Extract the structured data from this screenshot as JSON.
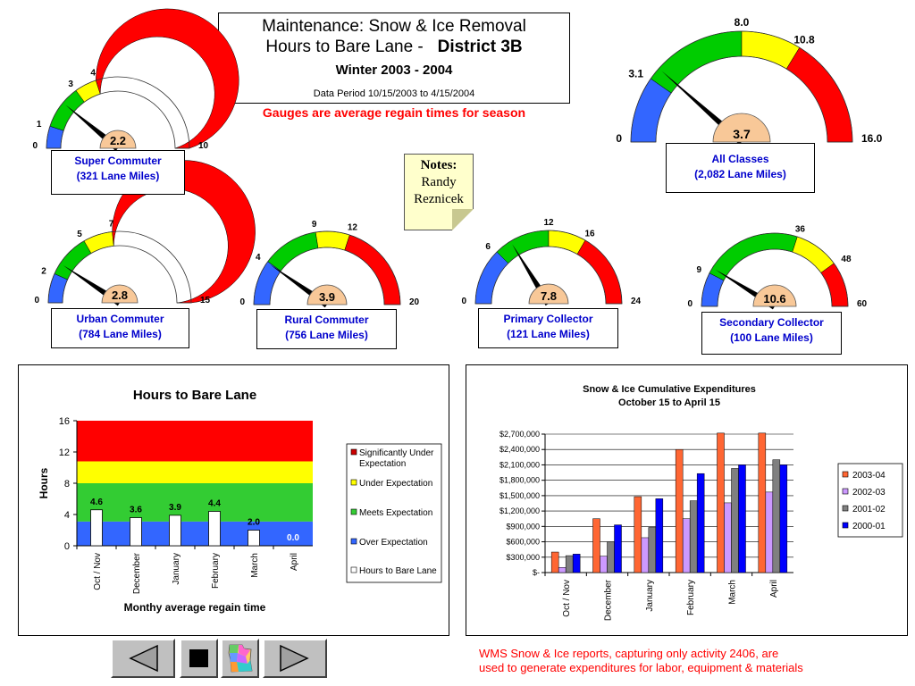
{
  "title": {
    "line1": "Maintenance: Snow & Ice Removal",
    "line2_prefix": "Hours to Bare Lane -",
    "line2_district": "District 3B",
    "line3": "Winter 2003 - 2004",
    "line4": "Data Period 10/15/2003 to 4/15/2004"
  },
  "gauge_note": "Gauges are average regain times for season",
  "notes": {
    "heading": "Notes:",
    "line1": "Randy",
    "line2": "Reznicek"
  },
  "colors": {
    "blue": "#3366ff",
    "green": "#00cc00",
    "yellow": "#ffff00",
    "red": "#ff0000",
    "hub": "#f8c898",
    "label_text": "#0000cc"
  },
  "gauges": [
    {
      "id": "super-commuter",
      "label": "Super Commuter",
      "miles": "(321 Lane Miles)",
      "value": 2.2,
      "value_text": "2.2",
      "max": 10,
      "ticks": [
        0,
        1,
        3,
        4,
        10
      ],
      "tick_labels": [
        "0",
        "1",
        "3",
        "4",
        "10"
      ]
    },
    {
      "id": "all-classes",
      "label": "All Classes",
      "miles": "(2,082 Lane Miles)",
      "value": 3.7,
      "value_text": "3.7",
      "max": 16,
      "ticks": [
        0,
        3.1,
        8,
        10.8,
        16
      ],
      "tick_labels": [
        "0",
        "3.1",
        "8.0",
        "10.8",
        "16.0"
      ]
    },
    {
      "id": "urban-commuter",
      "label": "Urban Commuter",
      "miles": "(784 Lane Miles)",
      "value": 2.8,
      "value_text": "2.8",
      "max": 15,
      "ticks": [
        0,
        2,
        5,
        7,
        15
      ],
      "tick_labels": [
        "0",
        "2",
        "5",
        "7",
        "15"
      ]
    },
    {
      "id": "rural-commuter",
      "label": "Rural Commuter",
      "miles": "(756 Lane Miles)",
      "value": 3.9,
      "value_text": "3.9",
      "max": 20,
      "ticks": [
        0,
        4,
        9,
        12,
        20
      ],
      "tick_labels": [
        "0",
        "4",
        "9",
        "12",
        "20"
      ]
    },
    {
      "id": "primary-collector",
      "label": "Primary Collector",
      "miles": "(121 Lane Miles)",
      "value": 7.8,
      "value_text": "7.8",
      "max": 24,
      "ticks": [
        0,
        6,
        12,
        16,
        24
      ],
      "tick_labels": [
        "0",
        "6",
        "12",
        "16",
        "24"
      ]
    },
    {
      "id": "secondary-collector",
      "label": "Secondary Collector",
      "miles": "(100 Lane Miles)",
      "value": 10.6,
      "value_text": "10.6",
      "max": 60,
      "ticks": [
        0,
        9,
        36,
        48,
        60
      ],
      "tick_labels": [
        "0",
        "9",
        "36",
        "48",
        "60"
      ]
    }
  ],
  "chart_data": [
    {
      "type": "bar",
      "title": "Hours to Bare Lane",
      "ylabel": "Hours",
      "xlabel": "Monthy average regain time",
      "ylim": [
        0,
        16
      ],
      "yticks": [
        0,
        4,
        8,
        12,
        16
      ],
      "categories": [
        "Oct / Nov",
        "December",
        "January",
        "February",
        "March",
        "April"
      ],
      "values": [
        4.6,
        3.6,
        3.9,
        4.4,
        2.0,
        0.0
      ],
      "value_labels": [
        "4.6",
        "3.6",
        "3.9",
        "4.4",
        "2.0",
        "0.0"
      ],
      "bands": [
        {
          "name": "Over Expectation",
          "from": 0,
          "to": 3.1,
          "color": "#3366ff"
        },
        {
          "name": "Meets Expectation",
          "from": 3.1,
          "to": 8.0,
          "color": "#33cc33"
        },
        {
          "name": "Under Expectation",
          "from": 8.0,
          "to": 10.8,
          "color": "#ffff00"
        },
        {
          "name": "Significantly Under Expectation",
          "from": 10.8,
          "to": 16,
          "color": "#ff0000"
        }
      ],
      "legend": [
        {
          "name": "Significantly Under Expectation",
          "color": "#cc0000"
        },
        {
          "name": "Under Expectation",
          "color": "#ffff00"
        },
        {
          "name": "Meets Expectation",
          "color": "#33cc33"
        },
        {
          "name": "Over Expectation",
          "color": "#3366ff"
        },
        {
          "name": "Hours to Bare Lane",
          "color": "#ffffff"
        }
      ],
      "legend_position": "right"
    },
    {
      "type": "bar",
      "title": "Snow & Ice Cumulative Expenditures",
      "subtitle": "October 15 to April 15",
      "ylim": [
        0,
        2700000
      ],
      "yticks": [
        0,
        300000,
        600000,
        900000,
        1200000,
        1500000,
        1800000,
        2100000,
        2400000,
        2700000
      ],
      "ytick_labels": [
        "$-",
        "$300,000",
        "$600,000",
        "$900,000",
        "$1,200,000",
        "$1,500,000",
        "$1,800,000",
        "$2,100,000",
        "$2,400,000",
        "$2,700,000"
      ],
      "categories": [
        "Oct / Nov",
        "December",
        "January",
        "February",
        "March",
        "April"
      ],
      "series": [
        {
          "name": "2003-04",
          "color": "#ff6633",
          "values": [
            400000,
            1050000,
            1480000,
            2400000,
            2720000,
            2720000
          ]
        },
        {
          "name": "2002-03",
          "color": "#cc99ff",
          "values": [
            100000,
            320000,
            680000,
            1050000,
            1360000,
            1570000
          ]
        },
        {
          "name": "2001-02",
          "color": "#808080",
          "values": [
            330000,
            600000,
            880000,
            1400000,
            2030000,
            2200000
          ]
        },
        {
          "name": "2000-01",
          "color": "#0000ff",
          "values": [
            360000,
            930000,
            1440000,
            1930000,
            2100000,
            2100000
          ]
        }
      ],
      "legend_position": "right"
    }
  ],
  "footer_note": {
    "line1": "WMS Snow & Ice reports, capturing only activity 2406, are",
    "line2": "used to generate expenditures for labor, equipment & materials"
  }
}
